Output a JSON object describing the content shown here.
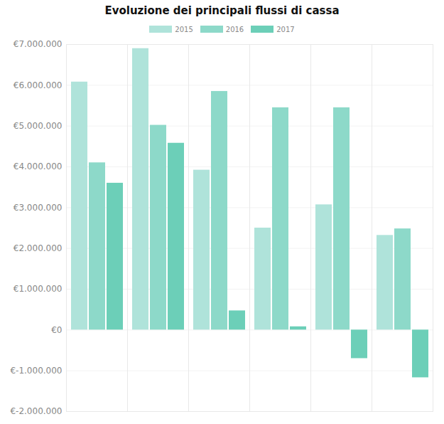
{
  "chart_data": {
    "type": "bar",
    "title": "Evoluzione dei principali flussi di cassa",
    "categories": [
      null,
      null,
      null,
      null,
      null,
      null
    ],
    "series": [
      {
        "name": "2015",
        "color": "#afe3da",
        "values": [
          6080000,
          6900000,
          3920000,
          2500000,
          3070000,
          2320000
        ]
      },
      {
        "name": "2016",
        "color": "#8dd9c9",
        "values": [
          4100000,
          5020000,
          5850000,
          5450000,
          5450000,
          2480000
        ]
      },
      {
        "name": "2017",
        "color": "#6ccfb8",
        "values": [
          3600000,
          4580000,
          470000,
          80000,
          -700000,
          -1170000
        ]
      }
    ],
    "ylim": [
      -2000000,
      7000000
    ],
    "yticks": [
      {
        "value": -2000000,
        "label": "€-2.000.000"
      },
      {
        "value": -1000000,
        "label": "€-1.000.000"
      },
      {
        "value": 0,
        "label": "€0"
      },
      {
        "value": 1000000,
        "label": "€1.000.000"
      },
      {
        "value": 2000000,
        "label": "€2.000.000"
      },
      {
        "value": 3000000,
        "label": "€3.000.000"
      },
      {
        "value": 4000000,
        "label": "€4.000.000"
      },
      {
        "value": 5000000,
        "label": "€5.000.000"
      },
      {
        "value": 6000000,
        "label": "€6.000.000"
      },
      {
        "value": 7000000,
        "label": "€7.000.000"
      }
    ],
    "grid": true,
    "legend": "top"
  }
}
